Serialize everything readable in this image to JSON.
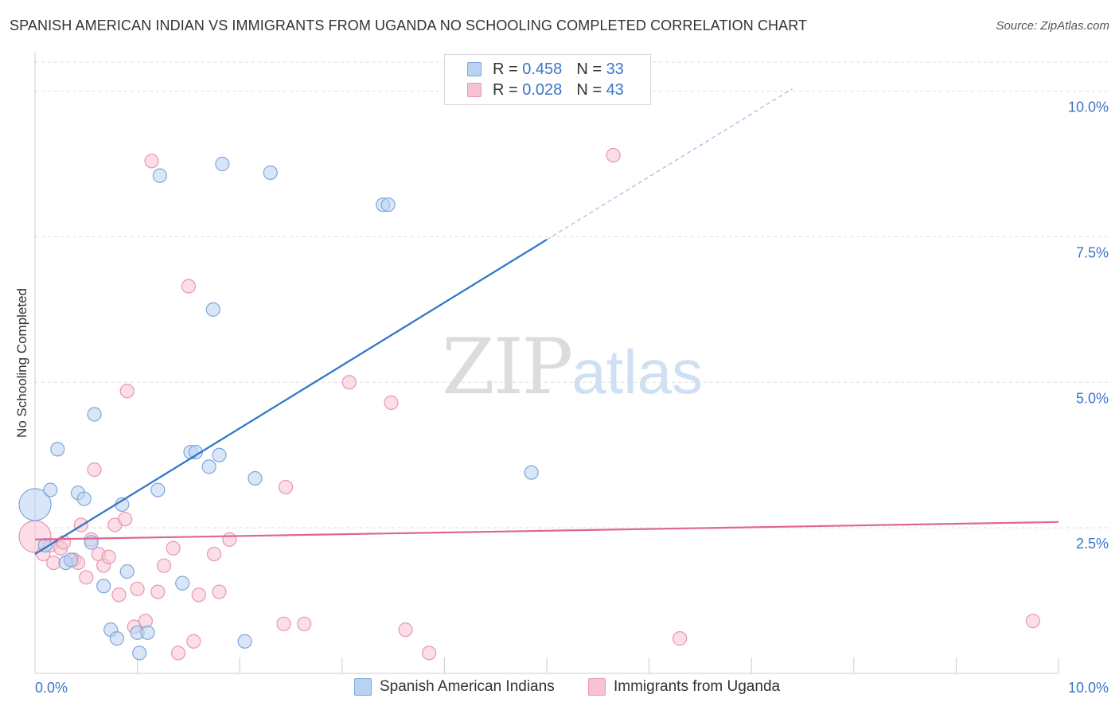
{
  "title": "SPANISH AMERICAN INDIAN VS IMMIGRANTS FROM UGANDA NO SCHOOLING COMPLETED CORRELATION CHART",
  "source": "Source: ZipAtlas.com",
  "watermark": {
    "zip": "ZIP",
    "atlas": "atlas"
  },
  "colors": {
    "blue_fill": "#b9d2f2",
    "blue_stroke": "#7ea6de",
    "blue_line": "#2f74c9",
    "pink_fill": "#f7c3d3",
    "pink_stroke": "#e897b1",
    "pink_line": "#e0668f",
    "axis_label": "#3c74c6",
    "grid": "#dddddd"
  },
  "legend_top": {
    "rows": [
      {
        "r_label": "R =",
        "r_value": "0.458",
        "n_label": "N =",
        "n_value": "33"
      },
      {
        "r_label": "R =",
        "r_value": "0.028",
        "n_label": "N =",
        "n_value": "43"
      }
    ]
  },
  "chart_data": {
    "type": "scatter",
    "title": "SPANISH AMERICAN INDIAN VS IMMIGRANTS FROM UGANDA NO SCHOOLING COMPLETED CORRELATION CHART",
    "xlabel": "",
    "ylabel": "No Schooling Completed",
    "xlim": [
      0,
      10
    ],
    "ylim": [
      0,
      10.5
    ],
    "x_tick_labels": [
      "0.0%",
      "10.0%"
    ],
    "y_tick_labels": [
      "2.5%",
      "5.0%",
      "7.5%",
      "10.0%"
    ],
    "y_ticks": [
      2.5,
      5.0,
      7.5,
      10.0
    ],
    "grid": true,
    "legend": "bottom-center",
    "series": [
      {
        "name": "Spanish American Indians",
        "R": 0.458,
        "N": 33,
        "trend": {
          "x0": 0.0,
          "y0": 2.05,
          "x1": 5.0,
          "y1": 7.45,
          "dash_to_x": 7.4
        },
        "points": [
          [
            0.0,
            2.9
          ],
          [
            0.1,
            2.2
          ],
          [
            0.15,
            3.15
          ],
          [
            0.22,
            3.85
          ],
          [
            0.3,
            1.9
          ],
          [
            0.35,
            1.95
          ],
          [
            0.42,
            3.1
          ],
          [
            0.48,
            3.0
          ],
          [
            0.55,
            2.25
          ],
          [
            0.58,
            4.45
          ],
          [
            0.67,
            1.5
          ],
          [
            0.74,
            0.75
          ],
          [
            0.8,
            0.6
          ],
          [
            0.85,
            2.9
          ],
          [
            0.9,
            1.75
          ],
          [
            1.0,
            0.7
          ],
          [
            1.02,
            0.35
          ],
          [
            1.1,
            0.7
          ],
          [
            1.2,
            3.15
          ],
          [
            1.22,
            8.55
          ],
          [
            1.44,
            1.55
          ],
          [
            1.52,
            3.8
          ],
          [
            1.57,
            3.8
          ],
          [
            1.7,
            3.55
          ],
          [
            1.74,
            6.25
          ],
          [
            1.8,
            3.75
          ],
          [
            1.83,
            8.75
          ],
          [
            2.05,
            0.55
          ],
          [
            2.15,
            3.35
          ],
          [
            2.3,
            8.6
          ],
          [
            3.4,
            8.05
          ],
          [
            3.45,
            8.05
          ],
          [
            4.85,
            3.45
          ]
        ]
      },
      {
        "name": "Immigrants from Uganda",
        "R": 0.028,
        "N": 43,
        "trend": {
          "x0": 0.0,
          "y0": 2.3,
          "x1": 10.0,
          "y1": 2.6
        },
        "points": [
          [
            0.0,
            2.35
          ],
          [
            0.08,
            2.05
          ],
          [
            0.15,
            2.2
          ],
          [
            0.18,
            1.9
          ],
          [
            0.25,
            2.15
          ],
          [
            0.28,
            2.25
          ],
          [
            0.38,
            1.95
          ],
          [
            0.42,
            1.9
          ],
          [
            0.45,
            2.55
          ],
          [
            0.5,
            1.65
          ],
          [
            0.55,
            2.3
          ],
          [
            0.58,
            3.5
          ],
          [
            0.62,
            2.05
          ],
          [
            0.67,
            1.85
          ],
          [
            0.72,
            2.0
          ],
          [
            0.78,
            2.55
          ],
          [
            0.82,
            1.35
          ],
          [
            0.88,
            2.65
          ],
          [
            0.9,
            4.85
          ],
          [
            0.97,
            0.8
          ],
          [
            1.0,
            1.45
          ],
          [
            1.08,
            0.9
          ],
          [
            1.14,
            8.8
          ],
          [
            1.2,
            1.4
          ],
          [
            1.26,
            1.85
          ],
          [
            1.35,
            2.15
          ],
          [
            1.4,
            0.35
          ],
          [
            1.5,
            6.65
          ],
          [
            1.55,
            0.55
          ],
          [
            1.6,
            1.35
          ],
          [
            1.75,
            2.05
          ],
          [
            1.8,
            1.4
          ],
          [
            1.9,
            2.3
          ],
          [
            2.43,
            0.85
          ],
          [
            2.45,
            3.2
          ],
          [
            2.63,
            0.85
          ],
          [
            3.07,
            5.0
          ],
          [
            3.48,
            4.65
          ],
          [
            3.62,
            0.75
          ],
          [
            3.85,
            0.35
          ],
          [
            5.65,
            8.9
          ],
          [
            6.3,
            0.6
          ],
          [
            9.75,
            0.9
          ]
        ]
      }
    ]
  },
  "bottom_legend": [
    {
      "label": "Spanish American Indians"
    },
    {
      "label": "Immigrants from Uganda"
    }
  ]
}
